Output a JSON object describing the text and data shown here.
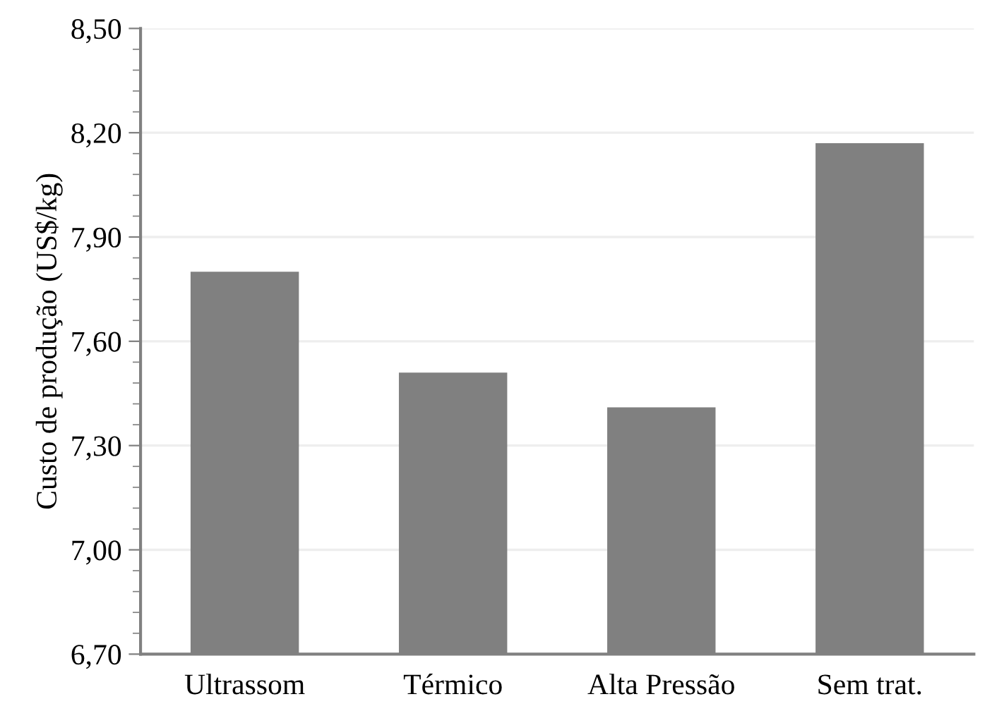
{
  "chart_data": {
    "type": "bar",
    "ylabel": "Custo de produção (US$/kg)",
    "categories": [
      "Ultrassom",
      "Térmico",
      "Alta Pressão",
      "Sem trat."
    ],
    "values": [
      7.8,
      7.51,
      7.41,
      8.17
    ],
    "color": "#808080",
    "ylim": [
      6.7,
      8.5
    ],
    "yticks": [
      {
        "value": 6.7,
        "label": "6,70"
      },
      {
        "value": 7.0,
        "label": "7,00"
      },
      {
        "value": 7.3,
        "label": "7,30"
      },
      {
        "value": 7.6,
        "label": "7,60"
      },
      {
        "value": 7.9,
        "label": "7,90"
      },
      {
        "value": 8.2,
        "label": "8,20"
      },
      {
        "value": 8.5,
        "label": "8,50"
      }
    ],
    "grid": "y"
  }
}
